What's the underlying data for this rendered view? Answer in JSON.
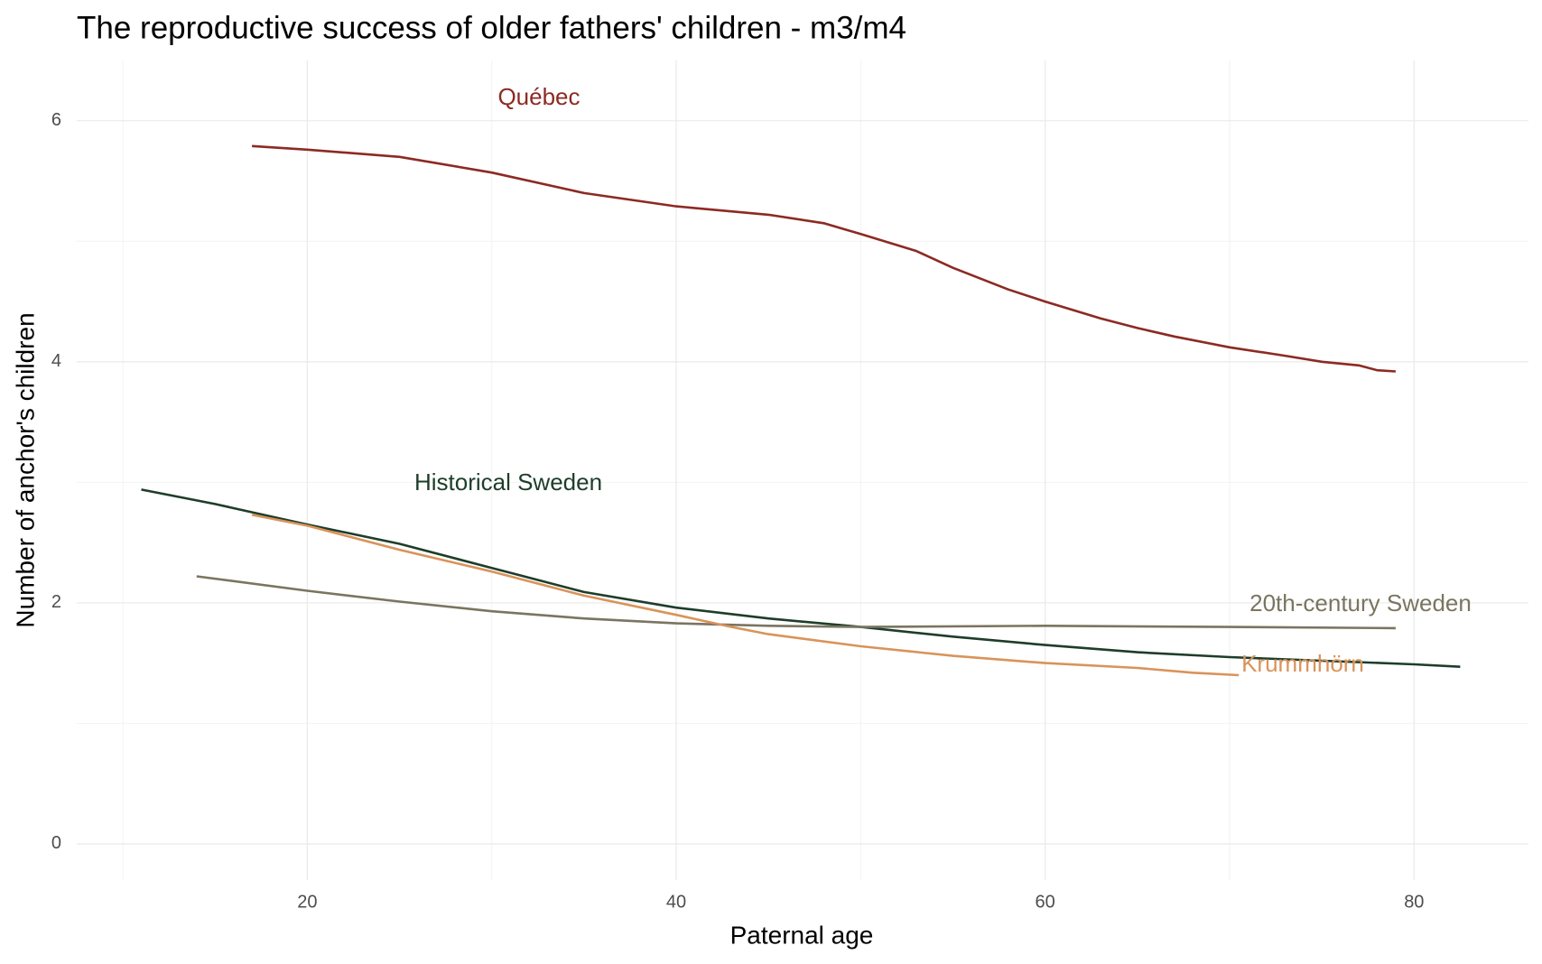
{
  "chart_data": {
    "type": "line",
    "title": "The reproductive success of older fathers' children - m3/m4",
    "xlabel": "Paternal age",
    "ylabel": "Number of anchor's children",
    "xlim": [
      7.5,
      86.2
    ],
    "ylim": [
      -0.3,
      6.5
    ],
    "xticks": [
      20,
      40,
      60,
      80
    ],
    "yticks": [
      0,
      2,
      4,
      6
    ],
    "xminorticks": [
      10,
      30,
      50,
      70
    ],
    "yminorticks": [
      1,
      3,
      5
    ],
    "grid": true,
    "legend": false,
    "series": [
      {
        "name": "Québec",
        "color": "#8c2a23",
        "x": [
          17,
          20,
          25,
          30,
          35,
          40,
          45,
          48,
          50,
          53,
          55,
          58,
          60,
          63,
          65,
          67,
          70,
          73,
          75,
          77,
          78,
          79
        ],
        "values": [
          5.79,
          5.76,
          5.7,
          5.57,
          5.4,
          5.29,
          5.22,
          5.15,
          5.06,
          4.92,
          4.78,
          4.6,
          4.5,
          4.36,
          4.28,
          4.21,
          4.12,
          4.05,
          4.0,
          3.97,
          3.93,
          3.92
        ]
      },
      {
        "name": "Historical Sweden",
        "color": "#1e3d2a",
        "x": [
          11,
          15,
          20,
          25,
          30,
          35,
          40,
          45,
          50,
          55,
          60,
          65,
          70,
          75,
          80,
          82.5
        ],
        "values": [
          2.94,
          2.82,
          2.65,
          2.49,
          2.29,
          2.09,
          1.96,
          1.87,
          1.8,
          1.72,
          1.65,
          1.59,
          1.55,
          1.52,
          1.49,
          1.47
        ]
      },
      {
        "name": "20th-century Sweden",
        "color": "#7a7560",
        "x": [
          14,
          20,
          25,
          30,
          35,
          40,
          45,
          50,
          60,
          70,
          79
        ],
        "values": [
          2.22,
          2.1,
          2.01,
          1.93,
          1.87,
          1.83,
          1.81,
          1.8,
          1.81,
          1.8,
          1.79
        ]
      },
      {
        "name": "Krummhörn",
        "color": "#d9935a",
        "x": [
          17,
          20,
          25,
          30,
          35,
          40,
          43,
          45,
          50,
          55,
          60,
          65,
          68,
          70.5
        ],
        "values": [
          2.73,
          2.64,
          2.44,
          2.26,
          2.06,
          1.9,
          1.8,
          1.74,
          1.64,
          1.56,
          1.5,
          1.46,
          1.42,
          1.4
        ]
      }
    ]
  }
}
